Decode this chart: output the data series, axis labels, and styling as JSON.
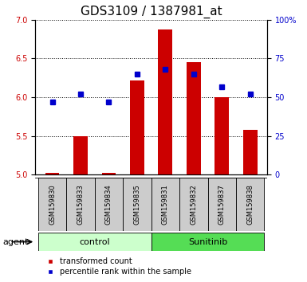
{
  "title": "GDS3109 / 1387981_at",
  "samples": [
    "GSM159830",
    "GSM159833",
    "GSM159834",
    "GSM159835",
    "GSM159831",
    "GSM159832",
    "GSM159837",
    "GSM159838"
  ],
  "transformed_count": [
    5.03,
    5.5,
    5.03,
    6.22,
    6.87,
    6.45,
    6.0,
    5.58
  ],
  "percentile_rank": [
    47,
    52,
    47,
    65,
    68,
    65,
    57,
    52
  ],
  "bar_color": "#cc0000",
  "dot_color": "#0000cc",
  "left_ylim": [
    5.0,
    7.0
  ],
  "left_yticks": [
    5.0,
    5.5,
    6.0,
    6.5,
    7.0
  ],
  "right_ylim": [
    0,
    100
  ],
  "right_yticks": [
    0,
    25,
    50,
    75,
    100
  ],
  "right_yticklabels": [
    "0",
    "25",
    "50",
    "75",
    "100%"
  ],
  "groups": [
    {
      "label": "control",
      "indices": [
        0,
        1,
        2,
        3
      ],
      "color": "#ccffcc"
    },
    {
      "label": "Sunitinib",
      "indices": [
        4,
        5,
        6,
        7
      ],
      "color": "#55dd55"
    }
  ],
  "agent_label": "agent",
  "legend_items": [
    {
      "label": "transformed count",
      "color": "#cc0000"
    },
    {
      "label": "percentile rank within the sample",
      "color": "#0000cc"
    }
  ],
  "bar_width": 0.5,
  "bg_color": "#ffffff",
  "sample_bg_color": "#cccccc",
  "title_fontsize": 11,
  "tick_fontsize": 7,
  "sample_fontsize": 6,
  "group_fontsize": 8,
  "legend_fontsize": 7,
  "agent_fontsize": 8
}
